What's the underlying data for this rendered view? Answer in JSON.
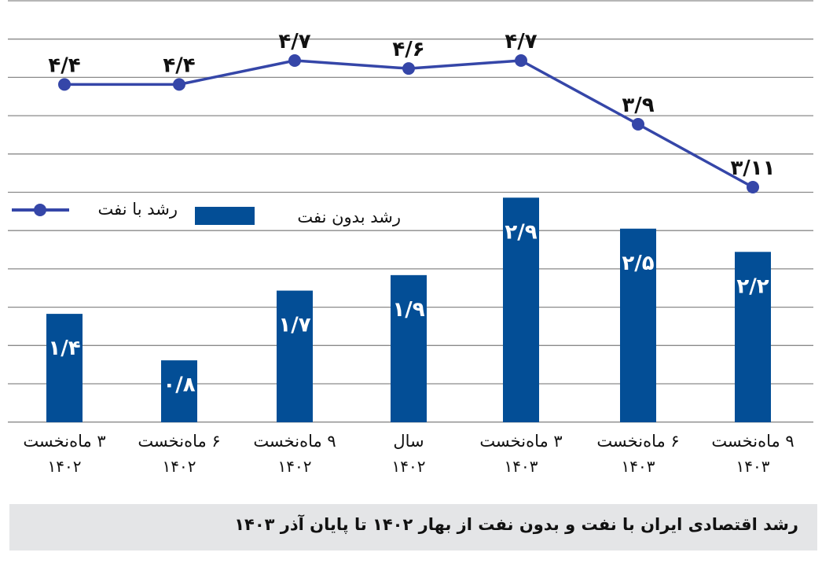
{
  "chart_data": {
    "type": "bar+line",
    "title": "رشد اقتصادی ایران با نفت و بدون نفت از بهار ۱۴۰۲ تا پایان آذر ۱۴۰۳",
    "xlabel": "",
    "ylabel": "",
    "categories": [
      "۳ ماه نخست ۱۴۰۲",
      "۶ ماه نخست ۱۴۰۲",
      "۹ ماه نخست ۱۴۰۲",
      "سال ۱۴۰۲",
      "۳ ماه نخست ۱۴۰۳",
      "۶ ماه نخست ۱۴۰۳",
      "۹ ماه نخست ۱۴۰۳"
    ],
    "series": [
      {
        "name": "رشد بدون نفت",
        "type": "bar",
        "color": "#034e96",
        "values": [
          1.4,
          0.8,
          1.7,
          1.9,
          2.9,
          2.5,
          2.2
        ],
        "labels": [
          "۱/۴",
          "۰/۸",
          "۱/۷",
          "۱/۹",
          "۲/۹",
          "۲/۵",
          "۲/۲"
        ]
      },
      {
        "name": "رشد با نفت",
        "type": "line",
        "color": "#3546a8",
        "values": [
          4.4,
          4.4,
          4.7,
          4.6,
          4.7,
          3.9,
          3.11
        ],
        "labels": [
          "۴/۴",
          "۴/۴",
          "۴/۷",
          "۴/۶",
          "۴/۷",
          "۳/۹",
          "۳/۱۱"
        ]
      }
    ],
    "grid": true,
    "legend_position": "left, mid-chart",
    "axis_ticks_visible": false
  },
  "categories": [
    {
      "line1": "۳ ماه‌نخست",
      "line2": "۱۴۰۲"
    },
    {
      "line1": "۶ ماه‌نخست",
      "line2": "۱۴۰۲"
    },
    {
      "line1": "۹ ماه‌نخست",
      "line2": "۱۴۰۲"
    },
    {
      "line1": "سال",
      "line2": "۱۴۰۲"
    },
    {
      "line1": "۳ ماه‌نخست",
      "line2": "۱۴۰۳"
    },
    {
      "line1": "۶ ماه‌نخست",
      "line2": "۱۴۰۳"
    },
    {
      "line1": "۹ ماه‌نخست",
      "line2": "۱۴۰۳"
    }
  ],
  "legend": {
    "line_label": "رشد با نفت",
    "bar_label": "رشد بدون نفت"
  },
  "caption": "رشد اقتصادی ایران با نفت و بدون نفت از بهار ۱۴۰۲ تا پایان آذر ۱۴۰۳",
  "colors": {
    "bar": "#034e96",
    "line": "#3546a8",
    "grid": "#8a8a8a",
    "caption_bg": "#e4e5e7"
  }
}
